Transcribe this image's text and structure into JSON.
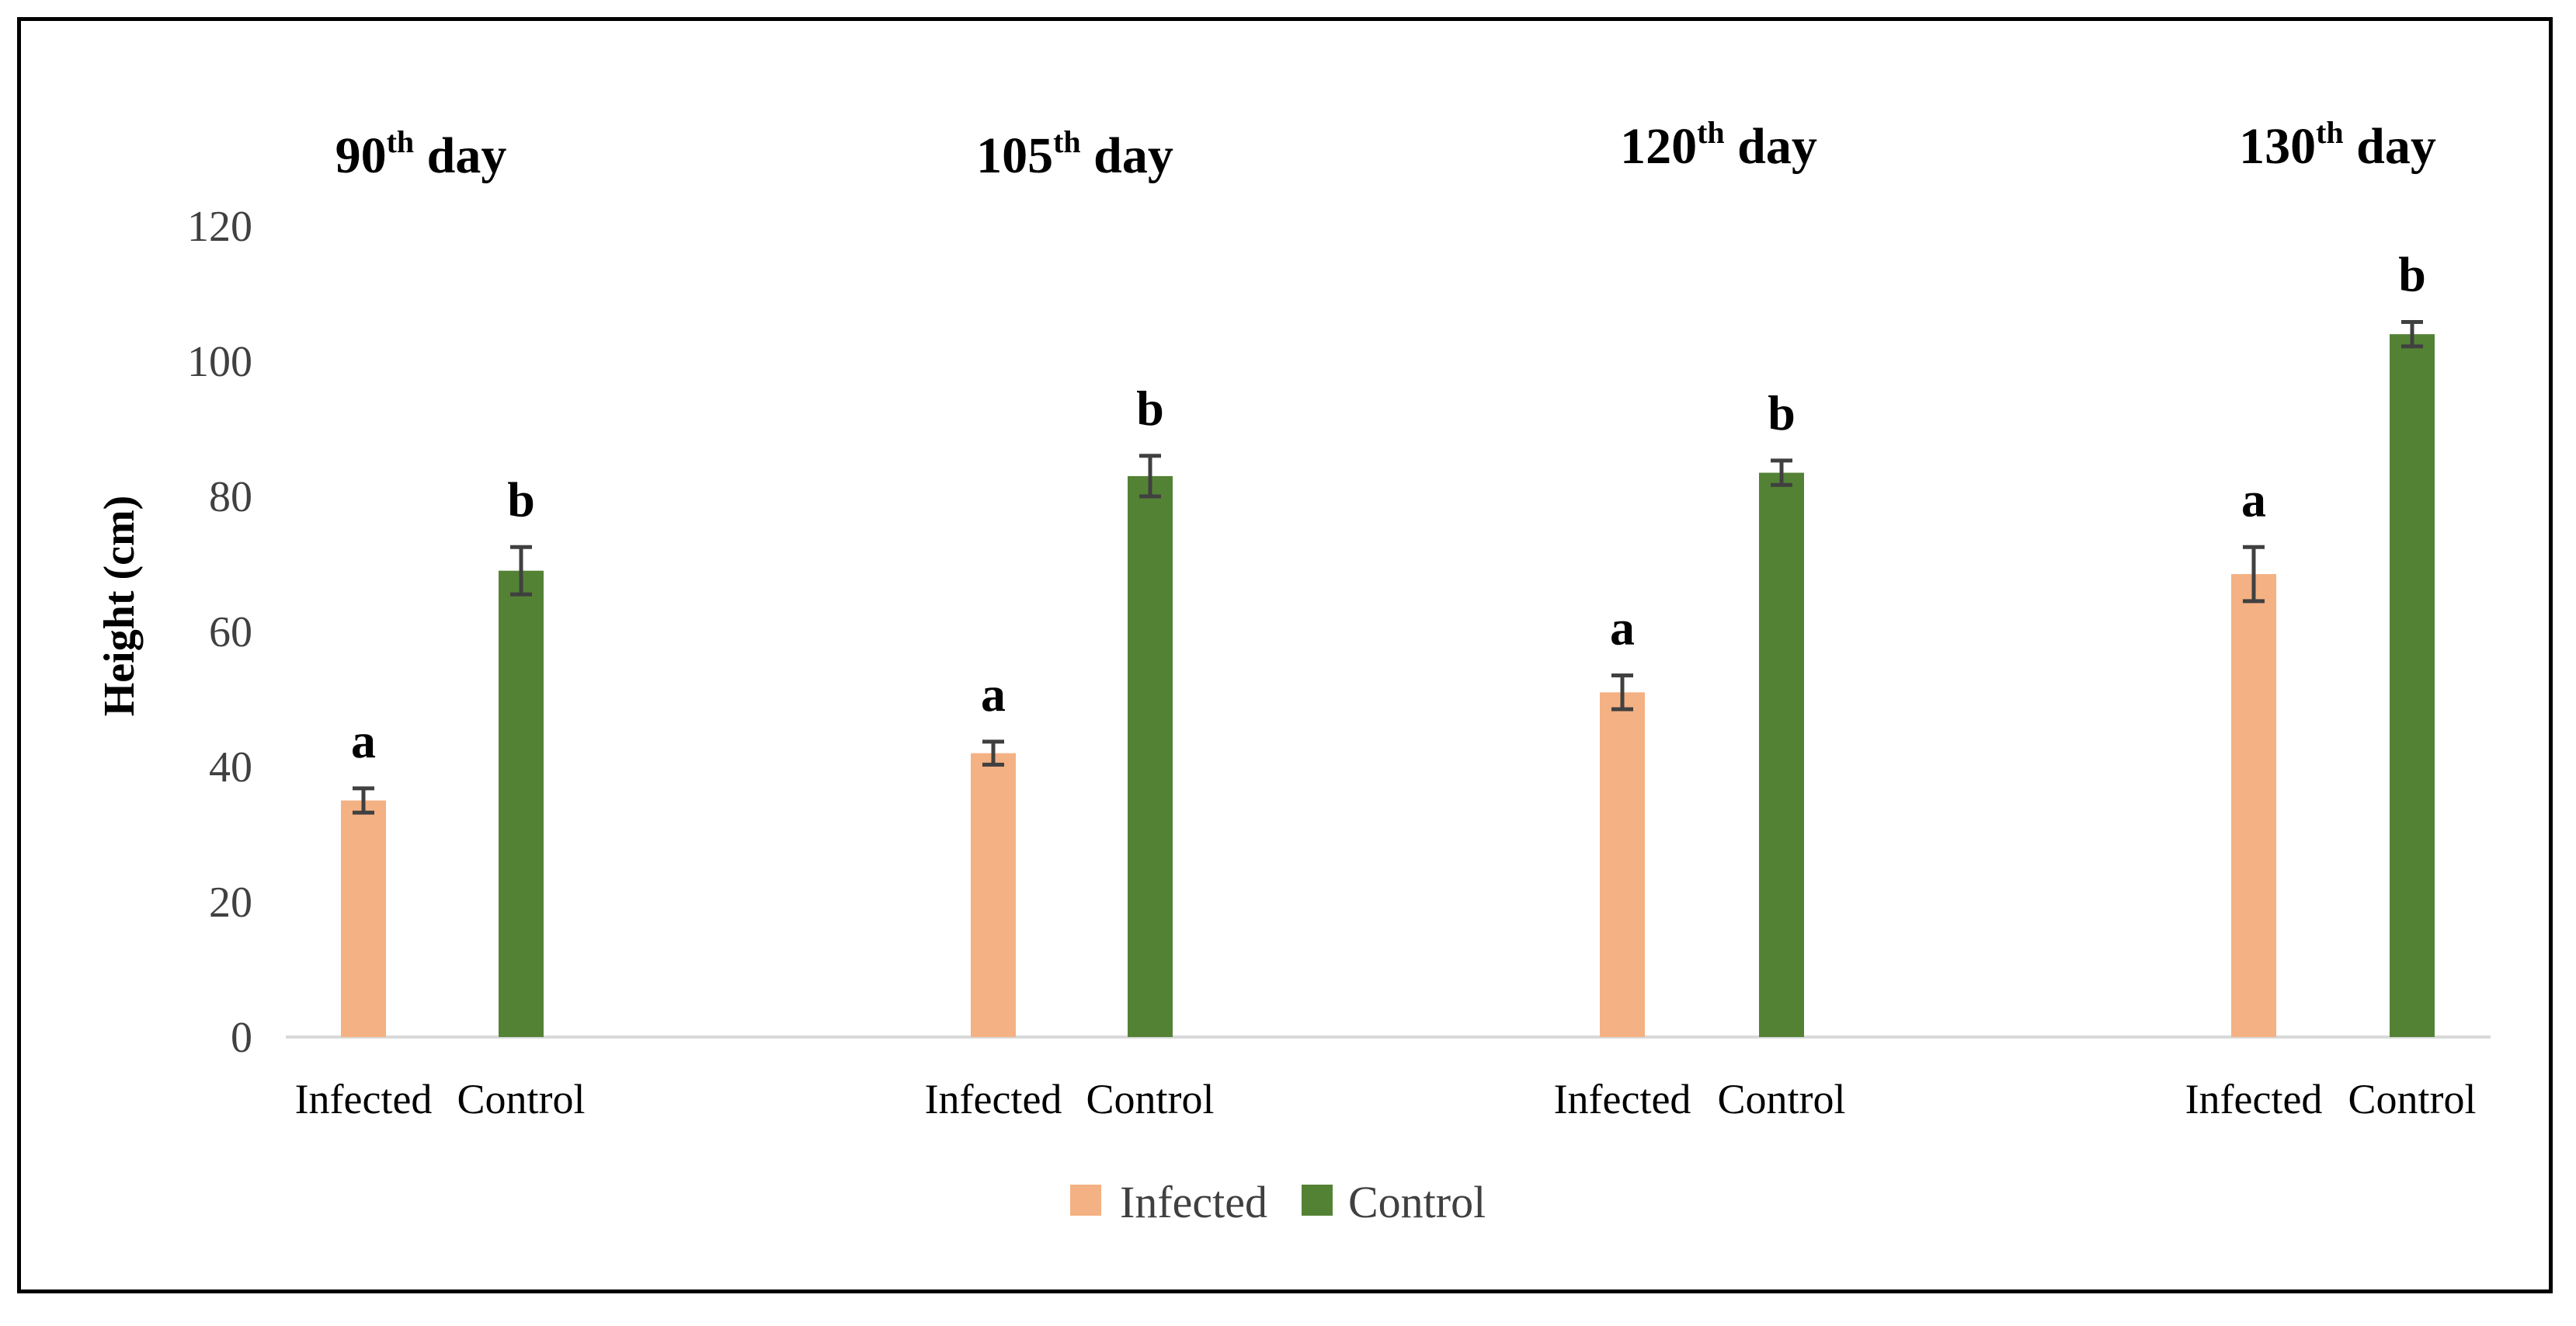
{
  "chart_data": {
    "type": "bar",
    "ylabel": "Height (cm)",
    "xlabel": "",
    "ylim": [
      0,
      120
    ],
    "yticks": [
      0,
      20,
      40,
      60,
      80,
      100,
      120
    ],
    "grid": false,
    "legend_position": "bottom-center",
    "colors": {
      "Infected": "#F4B183",
      "Control": "#548235",
      "error_bar": "#404040"
    },
    "series_names": [
      "Infected",
      "Control"
    ],
    "panels": [
      {
        "title_main": "90",
        "title_sup": "th",
        "title_rest": " day",
        "categories": [
          "Infected",
          "Control"
        ],
        "values": [
          35,
          69
        ],
        "errors": [
          1.8,
          3.5
        ],
        "significance": [
          "a",
          "b"
        ]
      },
      {
        "title_main": "105",
        "title_sup": "th",
        "title_rest": " day",
        "categories": [
          "Infected",
          "Control"
        ],
        "values": [
          42,
          83
        ],
        "errors": [
          1.7,
          3.0
        ],
        "significance": [
          "a",
          "b"
        ]
      },
      {
        "title_main": "120",
        "title_sup": "th",
        "title_rest": " day",
        "categories": [
          "Infected",
          "Control"
        ],
        "values": [
          51,
          83.5
        ],
        "errors": [
          2.5,
          1.8
        ],
        "significance": [
          "a",
          "b"
        ]
      },
      {
        "title_main": "130",
        "title_sup": "th",
        "title_rest": " day",
        "categories": [
          "Infected",
          "Control"
        ],
        "values": [
          68.5,
          104
        ],
        "errors": [
          4.0,
          1.8
        ],
        "significance": [
          "a",
          "b"
        ]
      }
    ]
  }
}
